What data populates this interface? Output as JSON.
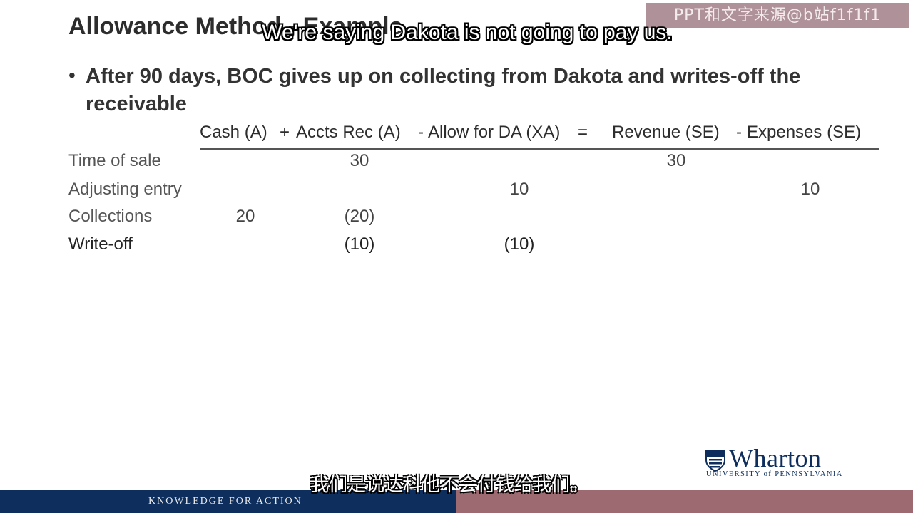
{
  "watermark": "PPT和文字来源@b站f1f1f1",
  "slide": {
    "title": "Allowance Method - Example",
    "bullet": "After 90 days, BOC gives up on collecting from Dakota and writes-off the receivable"
  },
  "equation": {
    "cash": "Cash (A)",
    "plus": "+",
    "accts_rec": "Accts Rec (A)",
    "minus1": "-",
    "allow_da": "Allow for DA (XA)",
    "equals": "=",
    "revenue": "Revenue (SE)",
    "minus2": "-",
    "expenses": "Expenses (SE)"
  },
  "rows": [
    {
      "label": "Time of sale",
      "cash": "",
      "accts_rec": "30",
      "allow_da": "",
      "revenue": "30",
      "expenses": ""
    },
    {
      "label": "Adjusting entry",
      "cash": "",
      "accts_rec": "",
      "allow_da": "10",
      "revenue": "",
      "expenses": "10"
    },
    {
      "label": "Collections",
      "cash": "20",
      "accts_rec": "(20)",
      "allow_da": "",
      "revenue": "",
      "expenses": ""
    },
    {
      "label": "Write-off",
      "cash": "",
      "accts_rec": "(10)",
      "allow_da": "(10)",
      "revenue": "",
      "expenses": ""
    }
  ],
  "subtitles": {
    "english": "We're saying Dakota is not going to pay us.",
    "chinese": "我们是说达科他不会付钱给我们。"
  },
  "footer": {
    "tagline": "KNOWLEDGE FOR ACTION"
  },
  "logo": {
    "name": "Wharton",
    "subtitle": "UNIVERSITY of PENNSYLVANIA"
  },
  "colors": {
    "navy": "#0e2f5e",
    "mauve": "#9e6a72"
  }
}
